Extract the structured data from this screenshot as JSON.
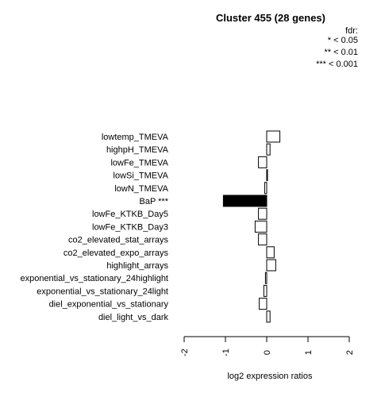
{
  "chart_data": {
    "type": "bar",
    "orientation": "horizontal",
    "title": "Cluster 455 (28 genes)",
    "xlabel": "log2 expression ratios",
    "ylabel": "",
    "xlim": [
      -2,
      2
    ],
    "x_ticks": [
      -2,
      -1,
      0,
      1,
      2
    ],
    "x_tick_labels": [
      "-2",
      "-1",
      "0",
      "1",
      "2"
    ],
    "legend": {
      "title": "fdr:",
      "entries": [
        "* < 0.05",
        "** < 0.01",
        "*** < 0.001"
      ],
      "placement": "top-right"
    },
    "categories": [
      "lowtemp_TMEVA",
      "highpH_TMEVA",
      "lowFe_TMEVA",
      "lowSi_TMEVA",
      "lowN_TMEVA",
      "BaP ***",
      "lowFe_KTKB_Day5",
      "lowFe_KTKB_Day3",
      "co2_elevated_stat_arrays",
      "co2_elevated_expo_arrays",
      "highlight_arrays",
      "exponential_vs_stationary_24highlight",
      "exponential_vs_stationary_24light",
      "diel_exponential_vs_stationary",
      "diel_light_vs_dark"
    ],
    "values": [
      0.32,
      0.08,
      -0.2,
      0.02,
      -0.05,
      -1.05,
      -0.2,
      -0.28,
      -0.2,
      0.18,
      0.22,
      -0.03,
      -0.07,
      -0.18,
      0.08
    ],
    "significant": [
      false,
      false,
      false,
      false,
      false,
      true,
      false,
      false,
      false,
      false,
      false,
      false,
      false,
      false,
      false
    ],
    "colors": {
      "significant": "#000000",
      "normal": "#ffffff",
      "stroke": "#000000"
    }
  }
}
